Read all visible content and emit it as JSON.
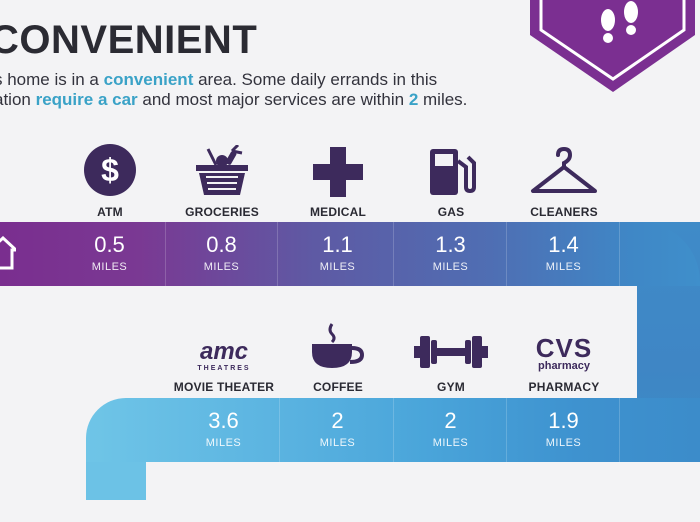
{
  "header": {
    "title": "CONVENIENT",
    "desc_parts": {
      "p1": "s home is in a ",
      "h1": "convenient",
      "p2": " area. Some daily errands in this",
      "p3": "ation ",
      "h2": "require a car",
      "p4": " and most major services are within ",
      "h3": "2",
      "p5": " miles."
    }
  },
  "badge": {
    "icon": "footprints-icon",
    "color": "#7b2f91"
  },
  "top_row": [
    {
      "label": "ATM",
      "icon": "dollar-icon",
      "distance": "0.5",
      "unit": "MILES"
    },
    {
      "label": "GROCERIES",
      "icon": "grocery-basket-icon",
      "distance": "0.8",
      "unit": "MILES"
    },
    {
      "label": "MEDICAL",
      "icon": "medical-cross-icon",
      "distance": "1.1",
      "unit": "MILES"
    },
    {
      "label": "GAS",
      "icon": "gas-pump-icon",
      "distance": "1.3",
      "unit": "MILES"
    },
    {
      "label": "CLEANERS",
      "icon": "hanger-icon",
      "distance": "1.4",
      "unit": "MILES"
    }
  ],
  "bottom_row": [
    {
      "label": "MOVIE THEATER",
      "icon": "amc-logo",
      "logo_main": "amc",
      "logo_sub": "THEATRES",
      "distance": "3.6",
      "unit": "MILES"
    },
    {
      "label": "COFFEE",
      "icon": "coffee-cup-icon",
      "distance": "2",
      "unit": "MILES"
    },
    {
      "label": "GYM",
      "icon": "dumbbell-icon",
      "distance": "2",
      "unit": "MILES"
    },
    {
      "label": "PHARMACY",
      "icon": "cvs-logo",
      "logo_main": "CVS",
      "logo_sub": "pharmacy",
      "distance": "1.9",
      "unit": "MILES"
    }
  ],
  "colors": {
    "icon": "#3d2a5c",
    "highlight": "#3aa2c7",
    "purple": "#7a2e8f",
    "blue": "#3f8bc8",
    "light_blue": "#6fc5e7"
  }
}
